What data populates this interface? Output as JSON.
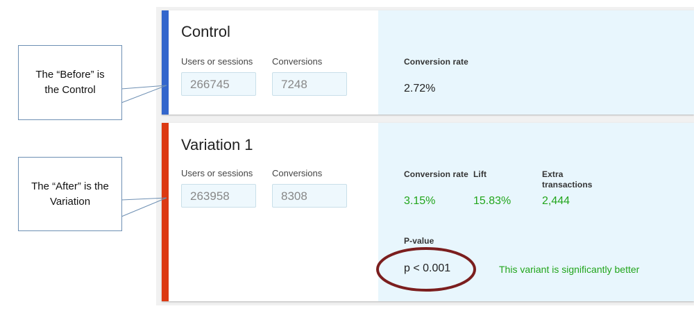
{
  "callouts": {
    "control_note": "The “Before” is the Control",
    "variation_note": "The “After” is the Variation"
  },
  "control": {
    "title": "Control",
    "users_label": "Users or sessions",
    "conversions_label": "Conversions",
    "users_value": "266745",
    "conversions_value": "7248",
    "rate_label": "Conversion rate",
    "rate_value": "2.72%",
    "accent_color": "#3366cc"
  },
  "variation": {
    "title": "Variation 1",
    "users_label": "Users or sessions",
    "conversions_label": "Conversions",
    "users_value": "263958",
    "conversions_value": "8308",
    "rate_label": "Conversion rate",
    "lift_label": "Lift",
    "extra_label": "Extra transactions",
    "rate_value": "3.15%",
    "lift_value": "15.83%",
    "extra_value": "2,444",
    "pvalue_label": "P-value",
    "pvalue_value": "p < 0.001",
    "significance_text": "This variant is significantly better",
    "accent_color": "#dc3912"
  },
  "colors": {
    "positive": "#21a51b",
    "highlight_ellipse": "#7b1e1e"
  }
}
